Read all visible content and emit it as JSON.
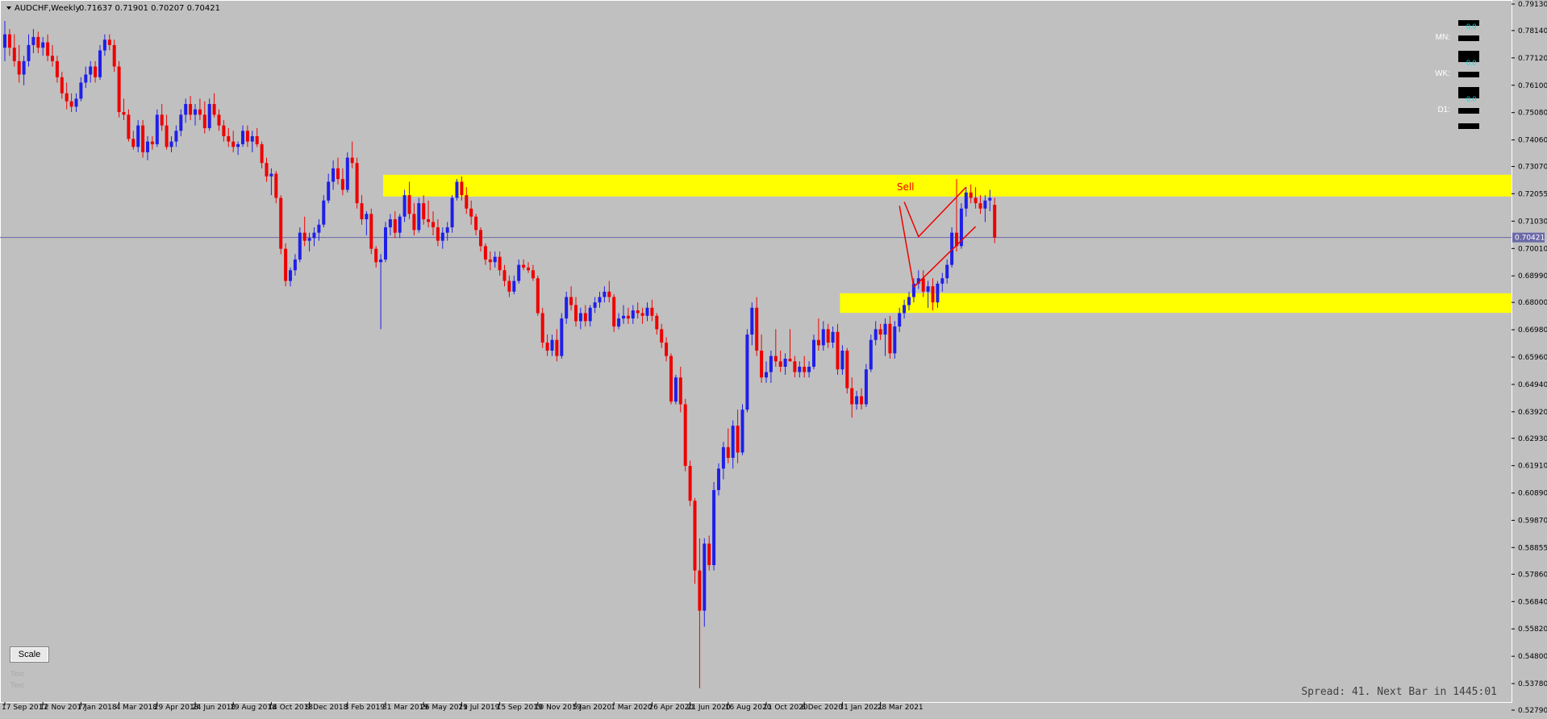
{
  "header": {
    "symbol": "AUDCHF,Weekly",
    "ohlc": "0.71637 0.71901 0.70207 0.70421"
  },
  "colors": {
    "background": "#c0c0c0",
    "bull": "#1f1fe8",
    "bear": "#ee0000",
    "zone": "#ffff00",
    "grid_line": "#6a6aa8",
    "text": "#000000",
    "drawing": "#ee0000"
  },
  "timeframe_panel": [
    {
      "label": "MN:",
      "value": "0.0"
    },
    {
      "label": "WK:",
      "value": "0.0"
    },
    {
      "label": "D1:",
      "value": "0.0"
    }
  ],
  "scale_button": "Scale",
  "ghost_labels": [
    "Text",
    "Text"
  ],
  "spread_text": "Spread: 41. Next Bar in 1445:01",
  "chart_data": {
    "type": "candlestick",
    "symbol": "AUDCHF",
    "timeframe": "Weekly",
    "ylim": [
      0.5328,
      0.7932
    ],
    "y_ticks": [
      "0.79130",
      "0.78140",
      "0.77120",
      "0.76100",
      "0.75080",
      "0.74060",
      "0.73070",
      "0.72055",
      "0.71030",
      "0.70010",
      "0.68990",
      "0.68000",
      "0.66980",
      "0.65960",
      "0.64940",
      "0.63920",
      "0.62930",
      "0.61910",
      "0.60890",
      "0.59870",
      "0.58855",
      "0.57860",
      "0.56840",
      "0.55820",
      "0.54800",
      "0.53780",
      "0.52790"
    ],
    "x_ticks": [
      "17 Sep 2017",
      "12 Nov 2017",
      "7 Jan 2018",
      "4 Mar 2018",
      "29 Apr 2018",
      "24 Jun 2018",
      "19 Aug 2018",
      "14 Oct 2018",
      "9 Dec 2018",
      "3 Feb 2019",
      "31 Mar 2019",
      "26 May 2019",
      "21 Jul 2019",
      "15 Sep 2019",
      "10 Nov 2019",
      "5 Jan 2020",
      "1 Mar 2020",
      "26 Apr 2020",
      "21 Jun 2020",
      "16 Aug 2020",
      "11 Oct 2020",
      "6 Dec 2020",
      "31 Jan 2021",
      "28 Mar 2021"
    ],
    "current_price": "0.70421",
    "zones": [
      {
        "name": "supply",
        "from": "31 Mar 2019",
        "top": 0.7276,
        "bottom": 0.7195
      },
      {
        "name": "demand",
        "from": "31 Jan 2021",
        "top": 0.6834,
        "bottom": 0.6761
      }
    ],
    "annotations": [
      {
        "text": "Sell",
        "x": "21 Apr 2021",
        "y": 0.723
      }
    ],
    "projections": [
      [
        [
          "2 May 2021",
          0.7175
        ],
        [
          "23 May 2021",
          0.7045
        ],
        [
          "1 Aug 2021",
          0.723
        ]
      ],
      [
        [
          "25 Apr 2021",
          0.716
        ],
        [
          "16 May 2021",
          0.6857
        ],
        [
          "15 Aug 2021",
          0.7083
        ]
      ]
    ],
    "candles": [
      [
        0.775,
        0.785,
        0.77,
        0.78
      ],
      [
        0.78,
        0.782,
        0.772,
        0.775
      ],
      [
        0.775,
        0.78,
        0.768,
        0.77
      ],
      [
        0.77,
        0.776,
        0.762,
        0.765
      ],
      [
        0.765,
        0.772,
        0.761,
        0.77
      ],
      [
        0.77,
        0.78,
        0.768,
        0.776
      ],
      [
        0.776,
        0.782,
        0.773,
        0.779
      ],
      [
        0.779,
        0.781,
        0.773,
        0.775
      ],
      [
        0.775,
        0.779,
        0.772,
        0.777
      ],
      [
        0.777,
        0.78,
        0.77,
        0.772
      ],
      [
        0.772,
        0.776,
        0.768,
        0.77
      ],
      [
        0.77,
        0.772,
        0.762,
        0.764
      ],
      [
        0.764,
        0.766,
        0.756,
        0.758
      ],
      [
        0.758,
        0.762,
        0.752,
        0.755
      ],
      [
        0.755,
        0.758,
        0.751,
        0.753
      ],
      [
        0.753,
        0.758,
        0.751,
        0.756
      ],
      [
        0.756,
        0.764,
        0.755,
        0.762
      ],
      [
        0.762,
        0.768,
        0.76,
        0.765
      ],
      [
        0.765,
        0.77,
        0.762,
        0.768
      ],
      [
        0.768,
        0.77,
        0.762,
        0.764
      ],
      [
        0.764,
        0.776,
        0.763,
        0.774
      ],
      [
        0.774,
        0.78,
        0.772,
        0.778
      ],
      [
        0.778,
        0.78,
        0.774,
        0.776
      ],
      [
        0.776,
        0.778,
        0.766,
        0.768
      ],
      [
        0.768,
        0.77,
        0.749,
        0.751
      ],
      [
        0.751,
        0.756,
        0.748,
        0.75
      ],
      [
        0.75,
        0.752,
        0.74,
        0.741
      ],
      [
        0.741,
        0.744,
        0.737,
        0.738
      ],
      [
        0.738,
        0.748,
        0.736,
        0.746
      ],
      [
        0.746,
        0.748,
        0.734,
        0.736
      ],
      [
        0.736,
        0.742,
        0.733,
        0.74
      ],
      [
        0.74,
        0.742,
        0.737,
        0.739
      ],
      [
        0.739,
        0.752,
        0.738,
        0.75
      ],
      [
        0.75,
        0.754,
        0.744,
        0.746
      ],
      [
        0.746,
        0.75,
        0.737,
        0.738
      ],
      [
        0.738,
        0.742,
        0.736,
        0.74
      ],
      [
        0.74,
        0.746,
        0.738,
        0.744
      ],
      [
        0.744,
        0.752,
        0.742,
        0.75
      ],
      [
        0.75,
        0.756,
        0.747,
        0.754
      ],
      [
        0.754,
        0.757,
        0.748,
        0.75
      ],
      [
        0.75,
        0.754,
        0.746,
        0.752
      ],
      [
        0.752,
        0.756,
        0.748,
        0.75
      ],
      [
        0.75,
        0.755,
        0.743,
        0.745
      ],
      [
        0.745,
        0.756,
        0.744,
        0.754
      ],
      [
        0.754,
        0.758,
        0.749,
        0.75
      ],
      [
        0.75,
        0.752,
        0.744,
        0.746
      ],
      [
        0.746,
        0.748,
        0.74,
        0.742
      ],
      [
        0.742,
        0.745,
        0.738,
        0.74
      ],
      [
        0.74,
        0.744,
        0.736,
        0.738
      ],
      [
        0.738,
        0.74,
        0.735,
        0.739
      ],
      [
        0.739,
        0.746,
        0.738,
        0.744
      ],
      [
        0.744,
        0.746,
        0.738,
        0.74
      ],
      [
        0.74,
        0.744,
        0.736,
        0.742
      ],
      [
        0.742,
        0.745,
        0.738,
        0.739
      ],
      [
        0.739,
        0.74,
        0.73,
        0.732
      ],
      [
        0.732,
        0.734,
        0.725,
        0.727
      ],
      [
        0.727,
        0.73,
        0.72,
        0.728
      ],
      [
        0.728,
        0.729,
        0.717,
        0.719
      ],
      [
        0.719,
        0.72,
        0.698,
        0.7
      ],
      [
        0.7,
        0.702,
        0.686,
        0.688
      ],
      [
        0.688,
        0.693,
        0.686,
        0.692
      ],
      [
        0.692,
        0.698,
        0.69,
        0.696
      ],
      [
        0.696,
        0.708,
        0.695,
        0.706
      ],
      [
        0.706,
        0.712,
        0.701,
        0.703
      ],
      [
        0.703,
        0.706,
        0.699,
        0.704
      ],
      [
        0.704,
        0.708,
        0.701,
        0.706
      ],
      [
        0.706,
        0.711,
        0.703,
        0.709
      ],
      [
        0.709,
        0.72,
        0.708,
        0.718
      ],
      [
        0.718,
        0.728,
        0.717,
        0.725
      ],
      [
        0.725,
        0.733,
        0.722,
        0.73
      ],
      [
        0.73,
        0.734,
        0.724,
        0.726
      ],
      [
        0.726,
        0.73,
        0.72,
        0.722
      ],
      [
        0.722,
        0.736,
        0.721,
        0.734
      ],
      [
        0.734,
        0.74,
        0.73,
        0.732
      ],
      [
        0.732,
        0.734,
        0.715,
        0.717
      ],
      [
        0.717,
        0.72,
        0.709,
        0.711
      ],
      [
        0.711,
        0.714,
        0.705,
        0.713
      ],
      [
        0.713,
        0.715,
        0.698,
        0.7
      ],
      [
        0.7,
        0.701,
        0.693,
        0.695
      ],
      [
        0.695,
        0.698,
        0.67,
        0.696
      ],
      [
        0.696,
        0.71,
        0.695,
        0.708
      ],
      [
        0.708,
        0.713,
        0.705,
        0.711
      ],
      [
        0.711,
        0.714,
        0.704,
        0.706
      ],
      [
        0.706,
        0.713,
        0.704,
        0.712
      ],
      [
        0.712,
        0.722,
        0.71,
        0.72
      ],
      [
        0.72,
        0.725,
        0.711,
        0.713
      ],
      [
        0.713,
        0.717,
        0.705,
        0.707
      ],
      [
        0.707,
        0.719,
        0.706,
        0.717
      ],
      [
        0.717,
        0.72,
        0.709,
        0.711
      ],
      [
        0.711,
        0.718,
        0.708,
        0.71
      ],
      [
        0.71,
        0.714,
        0.705,
        0.708
      ],
      [
        0.708,
        0.711,
        0.701,
        0.703
      ],
      [
        0.703,
        0.708,
        0.7,
        0.706
      ],
      [
        0.706,
        0.71,
        0.703,
        0.708
      ],
      [
        0.708,
        0.72,
        0.706,
        0.719
      ],
      [
        0.719,
        0.726,
        0.718,
        0.725
      ],
      [
        0.725,
        0.727,
        0.718,
        0.72
      ],
      [
        0.72,
        0.723,
        0.713,
        0.715
      ],
      [
        0.715,
        0.718,
        0.709,
        0.712
      ],
      [
        0.712,
        0.713,
        0.705,
        0.707
      ],
      [
        0.707,
        0.708,
        0.699,
        0.701
      ],
      [
        0.701,
        0.702,
        0.694,
        0.696
      ],
      [
        0.696,
        0.699,
        0.692,
        0.695
      ],
      [
        0.695,
        0.699,
        0.693,
        0.697
      ],
      [
        0.697,
        0.699,
        0.69,
        0.692
      ],
      [
        0.692,
        0.694,
        0.686,
        0.688
      ],
      [
        0.688,
        0.69,
        0.682,
        0.684
      ],
      [
        0.684,
        0.69,
        0.683,
        0.688
      ],
      [
        0.688,
        0.696,
        0.687,
        0.694
      ],
      [
        0.694,
        0.696,
        0.692,
        0.693
      ],
      [
        0.693,
        0.695,
        0.691,
        0.692
      ],
      [
        0.692,
        0.694,
        0.688,
        0.689
      ],
      [
        0.689,
        0.69,
        0.675,
        0.676
      ],
      [
        0.676,
        0.678,
        0.663,
        0.665
      ],
      [
        0.665,
        0.668,
        0.66,
        0.662
      ],
      [
        0.662,
        0.668,
        0.66,
        0.666
      ],
      [
        0.666,
        0.67,
        0.658,
        0.66
      ],
      [
        0.66,
        0.676,
        0.659,
        0.674
      ],
      [
        0.674,
        0.684,
        0.672,
        0.682
      ],
      [
        0.682,
        0.686,
        0.677,
        0.679
      ],
      [
        0.679,
        0.682,
        0.671,
        0.673
      ],
      [
        0.673,
        0.678,
        0.67,
        0.676
      ],
      [
        0.676,
        0.679,
        0.671,
        0.673
      ],
      [
        0.673,
        0.679,
        0.671,
        0.678
      ],
      [
        0.678,
        0.682,
        0.676,
        0.68
      ],
      [
        0.68,
        0.684,
        0.678,
        0.682
      ],
      [
        0.682,
        0.686,
        0.68,
        0.684
      ],
      [
        0.684,
        0.688,
        0.68,
        0.682
      ],
      [
        0.682,
        0.683,
        0.669,
        0.671
      ],
      [
        0.671,
        0.676,
        0.67,
        0.674
      ],
      [
        0.674,
        0.679,
        0.672,
        0.675
      ],
      [
        0.675,
        0.678,
        0.672,
        0.674
      ],
      [
        0.674,
        0.679,
        0.672,
        0.677
      ],
      [
        0.677,
        0.68,
        0.674,
        0.676
      ],
      [
        0.676,
        0.678,
        0.672,
        0.675
      ],
      [
        0.675,
        0.68,
        0.673,
        0.678
      ],
      [
        0.678,
        0.681,
        0.673,
        0.675
      ],
      [
        0.675,
        0.676,
        0.668,
        0.67
      ],
      [
        0.67,
        0.672,
        0.663,
        0.665
      ],
      [
        0.665,
        0.667,
        0.658,
        0.66
      ],
      [
        0.66,
        0.661,
        0.642,
        0.643
      ],
      [
        0.643,
        0.653,
        0.642,
        0.652
      ],
      [
        0.652,
        0.656,
        0.639,
        0.642
      ],
      [
        0.642,
        0.644,
        0.617,
        0.619
      ],
      [
        0.619,
        0.621,
        0.604,
        0.606
      ],
      [
        0.606,
        0.607,
        0.575,
        0.58
      ],
      [
        0.58,
        0.592,
        0.536,
        0.565
      ],
      [
        0.565,
        0.592,
        0.559,
        0.59
      ],
      [
        0.59,
        0.593,
        0.58,
        0.582
      ],
      [
        0.582,
        0.613,
        0.58,
        0.61
      ],
      [
        0.61,
        0.62,
        0.608,
        0.618
      ],
      [
        0.618,
        0.628,
        0.614,
        0.626
      ],
      [
        0.626,
        0.633,
        0.62,
        0.622
      ],
      [
        0.622,
        0.636,
        0.618,
        0.634
      ],
      [
        0.634,
        0.64,
        0.62,
        0.624
      ],
      [
        0.624,
        0.642,
        0.623,
        0.64
      ],
      [
        0.64,
        0.67,
        0.639,
        0.668
      ],
      [
        0.668,
        0.68,
        0.664,
        0.678
      ],
      [
        0.678,
        0.682,
        0.66,
        0.662
      ],
      [
        0.662,
        0.668,
        0.65,
        0.652
      ],
      [
        0.652,
        0.658,
        0.65,
        0.654
      ],
      [
        0.654,
        0.662,
        0.65,
        0.66
      ],
      [
        0.66,
        0.67,
        0.656,
        0.658
      ],
      [
        0.658,
        0.662,
        0.654,
        0.656
      ],
      [
        0.656,
        0.661,
        0.653,
        0.659
      ],
      [
        0.659,
        0.67,
        0.658,
        0.658
      ],
      [
        0.658,
        0.66,
        0.652,
        0.654
      ],
      [
        0.654,
        0.658,
        0.652,
        0.656
      ],
      [
        0.656,
        0.66,
        0.652,
        0.654
      ],
      [
        0.654,
        0.658,
        0.652,
        0.656
      ],
      [
        0.656,
        0.668,
        0.655,
        0.666
      ],
      [
        0.666,
        0.674,
        0.662,
        0.664
      ],
      [
        0.664,
        0.673,
        0.662,
        0.67
      ],
      [
        0.67,
        0.672,
        0.663,
        0.665
      ],
      [
        0.665,
        0.671,
        0.663,
        0.669
      ],
      [
        0.669,
        0.672,
        0.653,
        0.655
      ],
      [
        0.655,
        0.664,
        0.653,
        0.662
      ],
      [
        0.662,
        0.663,
        0.646,
        0.648
      ],
      [
        0.648,
        0.652,
        0.637,
        0.642
      ],
      [
        0.642,
        0.647,
        0.64,
        0.645
      ],
      [
        0.645,
        0.648,
        0.64,
        0.642
      ],
      [
        0.642,
        0.657,
        0.641,
        0.655
      ],
      [
        0.655,
        0.668,
        0.654,
        0.666
      ],
      [
        0.666,
        0.673,
        0.664,
        0.67
      ],
      [
        0.67,
        0.672,
        0.666,
        0.668
      ],
      [
        0.668,
        0.674,
        0.66,
        0.672
      ],
      [
        0.672,
        0.675,
        0.659,
        0.661
      ],
      [
        0.661,
        0.673,
        0.659,
        0.671
      ],
      [
        0.671,
        0.678,
        0.669,
        0.676
      ],
      [
        0.676,
        0.681,
        0.674,
        0.679
      ],
      [
        0.679,
        0.684,
        0.677,
        0.682
      ],
      [
        0.682,
        0.689,
        0.68,
        0.687
      ],
      [
        0.687,
        0.692,
        0.685,
        0.689
      ],
      [
        0.689,
        0.692,
        0.682,
        0.684
      ],
      [
        0.684,
        0.688,
        0.678,
        0.686
      ],
      [
        0.686,
        0.689,
        0.677,
        0.68
      ],
      [
        0.68,
        0.688,
        0.678,
        0.687
      ],
      [
        0.687,
        0.691,
        0.684,
        0.689
      ],
      [
        0.689,
        0.696,
        0.687,
        0.694
      ],
      [
        0.694,
        0.708,
        0.693,
        0.706
      ],
      [
        0.706,
        0.726,
        0.699,
        0.701
      ],
      [
        0.701,
        0.717,
        0.7,
        0.715
      ],
      [
        0.715,
        0.723,
        0.712,
        0.721
      ],
      [
        0.721,
        0.724,
        0.717,
        0.719
      ],
      [
        0.719,
        0.723,
        0.715,
        0.717
      ],
      [
        0.717,
        0.72,
        0.713,
        0.715
      ],
      [
        0.715,
        0.72,
        0.71,
        0.718
      ],
      [
        0.718,
        0.722,
        0.714,
        0.719
      ],
      [
        0.7164,
        0.719,
        0.7021,
        0.7042
      ]
    ]
  }
}
